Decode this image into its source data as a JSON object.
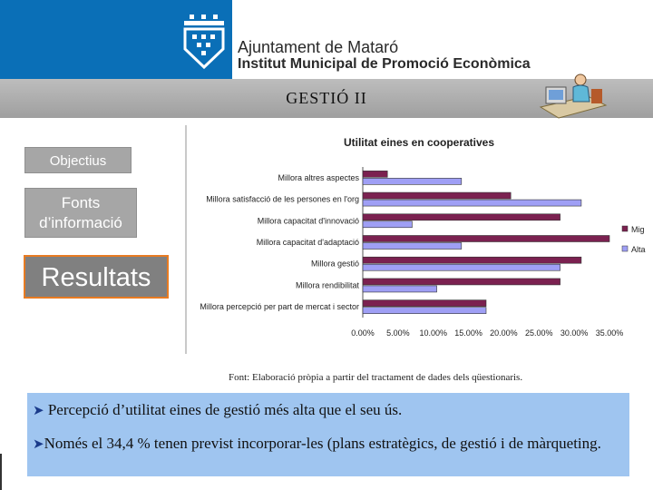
{
  "header": {
    "org_line1": "Ajuntament de Mataró",
    "org_line2": "Institut Municipal de Promoció Econòmica",
    "logo_icon": "city-crest-icon",
    "brand_color": "#0a6fb7"
  },
  "band": {
    "title": "GESTIÓ II",
    "icon": "person-at-computer-icon"
  },
  "nav": {
    "item1": "Objectius",
    "item2": "Fonts d’informació",
    "item3": "Resultats"
  },
  "chart_data": {
    "type": "bar",
    "orientation": "horizontal",
    "title": "Utilitat eines en cooperatives",
    "categories": [
      "Millora altres aspectes",
      "Millora satisfacció de les persones en l'org",
      "Millora capacitat d'innovació",
      "Millora capacitat d'adaptació",
      "Millora gestió",
      "Millora rendibilitat",
      "Millora percepció per part de mercat i sector"
    ],
    "series": [
      {
        "name": "Mig",
        "color": "#7b2150",
        "values": [
          3.5,
          21.0,
          28.0,
          35.0,
          31.0,
          28.0,
          17.5
        ]
      },
      {
        "name": "Alta",
        "color": "#9f9ff5",
        "values": [
          14.0,
          31.0,
          7.0,
          14.0,
          28.0,
          10.5,
          17.5
        ]
      }
    ],
    "x_ticks": [
      "0.00%",
      "5.00%",
      "10.00%",
      "15.00%",
      "20.00%",
      "25.00%",
      "30.00%",
      "35.00%"
    ],
    "xlim": [
      0,
      35
    ],
    "legend_position": "right",
    "grid": false
  },
  "source": "Font: Elaboració pròpia a partir del tractament de dades dels qüestionaris.",
  "notes": {
    "line1": " Percepció d’utilitat eines de gestió més alta que el seu ús.",
    "line2": "Només el 34,4 % tenen previst incorporar-les (plans estratègics, de gestió i de màrqueting.",
    "bullet_icon": "arrow-bullet-icon"
  }
}
